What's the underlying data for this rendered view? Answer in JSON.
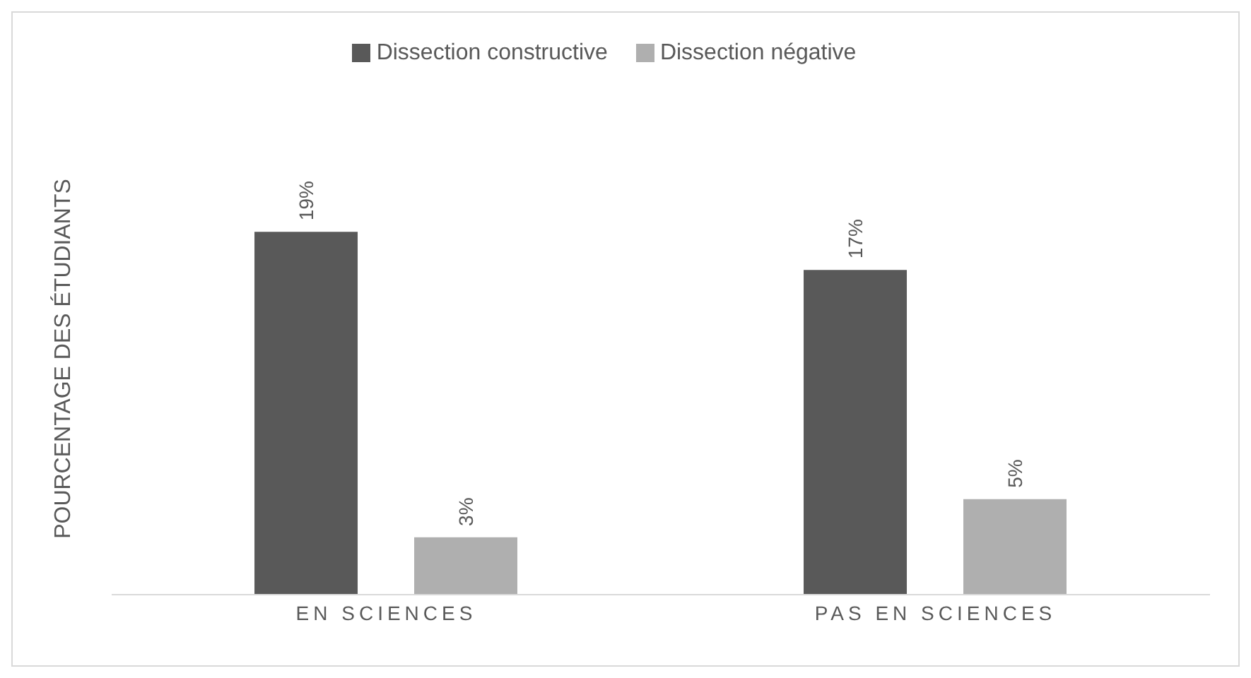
{
  "chart_data": {
    "type": "bar",
    "ylabel": "POURCENTAGE DES ÉTUDIANTS",
    "categories": [
      "EN SCIENCES",
      "PAS EN SCIENCES"
    ],
    "series": [
      {
        "name": "Dissection constructive",
        "color": "#595959",
        "values": [
          19,
          17
        ],
        "value_labels": [
          "19%",
          "17%"
        ]
      },
      {
        "name": "Dissection négative",
        "color": "#afafaf",
        "values": [
          3,
          5
        ],
        "value_labels": [
          "3%",
          "5%"
        ]
      }
    ],
    "tick_labels": "x",
    "legend": "top"
  }
}
